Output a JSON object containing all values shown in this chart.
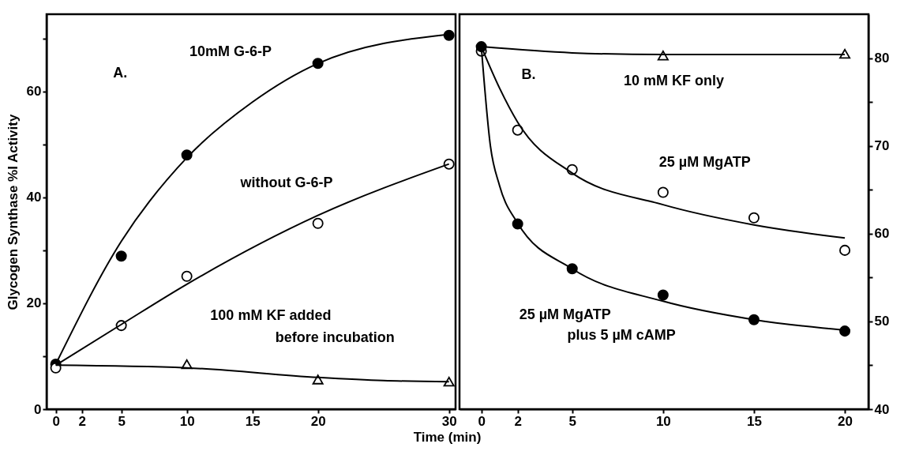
{
  "chart_data": [
    {
      "type": "scatter",
      "xlabel": "Time (min)",
      "ylabel": "Glycogen Synthase %I Activity",
      "xlim": [
        -0.7,
        30.5
      ],
      "xticks": [
        0,
        2,
        5,
        10,
        15,
        20,
        30
      ],
      "ylim": [
        0,
        74.6
      ],
      "yticks": [
        0,
        {
          "value": 10,
          "label": null
        },
        20,
        {
          "value": 30,
          "label": null
        },
        40,
        {
          "value": 50,
          "label": null
        },
        60,
        {
          "value": 70,
          "label": null
        }
      ],
      "grid": false,
      "series": [
        {
          "marker": "circle",
          "color": "#000000",
          "x": [
            0,
            5,
            10,
            20,
            30
          ],
          "values": [
            8.5,
            28.9,
            48.0,
            65.3,
            70.6
          ]
        },
        {
          "marker": "circle",
          "color": "#ffffff",
          "x": [
            0,
            5,
            10,
            20,
            30
          ],
          "values": [
            7.8,
            15.8,
            25.1,
            35.1,
            46.3
          ]
        },
        {
          "marker": "triangle",
          "color": "#ffffff",
          "x": [
            10,
            20,
            30
          ],
          "values": [
            8.5,
            5.6,
            5.2
          ]
        },
        {
          "type": "line",
          "marker": "none",
          "color": "#000000",
          "x": [
            0,
            5,
            10,
            15,
            20,
            30
          ],
          "values": [
            8.5,
            31.7,
            47.5,
            58,
            65.3,
            70.8
          ]
        },
        {
          "type": "line",
          "marker": "none",
          "color": "#000000",
          "x": [
            0,
            5,
            10,
            20,
            30
          ],
          "values": [
            8.3,
            16,
            23.6,
            36.6,
            46.3
          ]
        },
        {
          "type": "line",
          "marker": "none",
          "color": "#000000",
          "x": [
            0,
            10,
            20,
            25,
            30
          ],
          "values": [
            8.3,
            7.8,
            6,
            5.4,
            5.2
          ]
        }
      ],
      "annotations": [
        "A.",
        "10mM G-6-P",
        "without G-6-P",
        "100 mM KF added",
        "before incubation"
      ]
    },
    {
      "type": "scatter",
      "xlim": [
        -1.2,
        21.3
      ],
      "xticks": [
        0,
        2,
        5,
        10,
        15,
        20
      ],
      "y2lim": [
        40,
        85
      ],
      "y2ticks": [
        40,
        {
          "value": 45,
          "label": null
        },
        50,
        {
          "value": 55,
          "label": null
        },
        60,
        {
          "value": 65,
          "label": null
        },
        70,
        {
          "value": 75,
          "label": null
        },
        80
      ],
      "grid": false,
      "series": [
        {
          "axis": "y2",
          "marker": "triangle",
          "color": "#ffffff",
          "x": [
            10,
            20
          ],
          "values": [
            80.3,
            80.5
          ]
        },
        {
          "axis": "y2",
          "marker": "circle",
          "color": "#ffffff",
          "x": [
            0,
            2,
            5,
            10,
            15,
            20
          ],
          "values": [
            80.8,
            71.8,
            67.3,
            64.7,
            61.8,
            58.1
          ]
        },
        {
          "axis": "y2",
          "marker": "circle",
          "color": "#000000",
          "x": [
            0,
            2,
            5,
            10,
            15,
            20
          ],
          "values": [
            81.3,
            61.1,
            56.0,
            53.0,
            50.2,
            48.9
          ]
        },
        {
          "type": "line",
          "axis": "y2",
          "marker": "none",
          "color": "#000000",
          "x": [
            0,
            5,
            10,
            20
          ],
          "values": [
            81.3,
            80.6,
            80.4,
            80.4
          ]
        },
        {
          "type": "line",
          "axis": "y2",
          "marker": "none",
          "color": "#000000",
          "x": [
            0,
            1,
            2,
            5,
            10,
            15,
            20
          ],
          "values": [
            81.3,
            76.6,
            72.7,
            66.9,
            63.3,
            61.0,
            59.5
          ]
        },
        {
          "type": "line",
          "axis": "y2",
          "marker": "none",
          "color": "#000000",
          "x": [
            0,
            0.5,
            1,
            2,
            5,
            10,
            15,
            20
          ],
          "values": [
            81.3,
            70,
            65.5,
            61.2,
            56.0,
            52.3,
            50.2,
            49.0
          ]
        }
      ],
      "annotations": [
        "B.",
        "10 mM KF only",
        "25 µM MgATP",
        "25 µM MgATP",
        "plus 5 µM cAMP"
      ]
    }
  ]
}
